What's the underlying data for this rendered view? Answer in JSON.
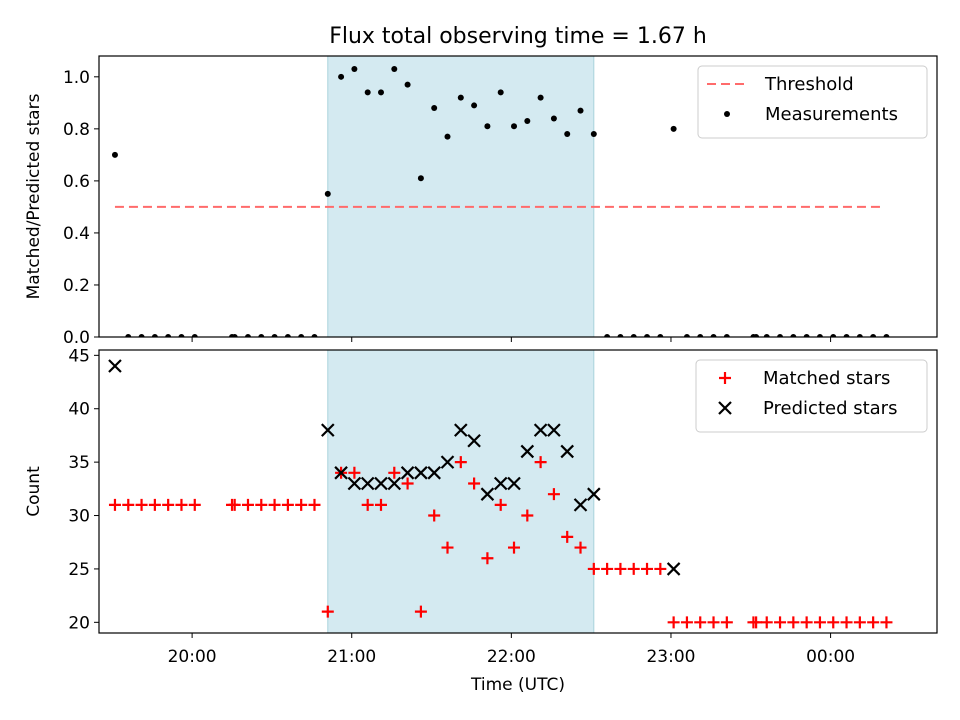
{
  "title": "Flux total observing time = 1.67 h",
  "chart_data": [
    {
      "type": "scatter",
      "ylabel": "Matched/Predicted stars",
      "ylim": [
        0,
        1.08
      ],
      "yticks": [
        "0.0",
        "0.2",
        "0.4",
        "0.6",
        "0.8",
        "1.0"
      ],
      "ytick_values": [
        0,
        0.2,
        0.4,
        0.6,
        0.8,
        1.0
      ],
      "legend_position": "top-right",
      "shaded_interval": [
        "20:51",
        "22:31"
      ],
      "threshold": {
        "name": "Threshold",
        "value": 0.5,
        "x_start": "19:31",
        "x_end": "00:20",
        "color": "#ff6b6b"
      },
      "series": [
        {
          "name": "Measurements",
          "color": "#000000",
          "x": [
            "19:31",
            "19:36",
            "19:41",
            "19:46",
            "19:51",
            "19:56",
            "20:01",
            "20:15",
            "20:16",
            "20:21",
            "20:26",
            "20:31",
            "20:36",
            "20:41",
            "20:46",
            "20:51",
            "20:56",
            "21:01",
            "21:06",
            "21:11",
            "21:16",
            "21:21",
            "21:26",
            "21:31",
            "21:36",
            "21:41",
            "21:46",
            "21:51",
            "21:56",
            "22:01",
            "22:06",
            "22:11",
            "22:16",
            "22:21",
            "22:26",
            "22:31",
            "22:36",
            "22:41",
            "22:46",
            "22:51",
            "22:56",
            "23:01",
            "23:06",
            "23:11",
            "23:16",
            "23:21",
            "23:31",
            "23:32",
            "23:36",
            "23:41",
            "23:46",
            "23:51",
            "23:56",
            "00:01",
            "00:06",
            "00:11",
            "00:16",
            "00:21"
          ],
          "y": [
            0.7,
            0,
            0,
            0,
            0,
            0,
            0,
            0,
            0,
            0,
            0,
            0,
            0,
            0,
            0,
            0.55,
            1.0,
            1.03,
            0.94,
            0.94,
            1.03,
            0.97,
            0.61,
            0.88,
            0.77,
            0.92,
            0.89,
            0.81,
            0.94,
            0.81,
            0.83,
            0.92,
            0.84,
            0.78,
            0.87,
            0.78,
            0,
            0,
            0,
            0,
            0,
            0.8,
            0,
            0,
            0,
            0,
            0,
            0,
            0,
            0,
            0,
            0,
            0,
            0,
            0,
            0,
            0,
            0
          ]
        }
      ]
    },
    {
      "type": "scatter",
      "ylabel": "Count",
      "xlabel": "Time (UTC)",
      "ylim": [
        19,
        45.5
      ],
      "yticks": [
        "20",
        "25",
        "30",
        "35",
        "40",
        "45"
      ],
      "ytick_values": [
        20,
        25,
        30,
        35,
        40,
        45
      ],
      "xticks": [
        "20:00",
        "21:00",
        "22:00",
        "23:00",
        "00:00"
      ],
      "xtick_values": [
        "20:00",
        "21:00",
        "22:00",
        "23:00",
        "00:00"
      ],
      "legend_position": "top-right",
      "shaded_interval": [
        "20:51",
        "22:31"
      ],
      "series": [
        {
          "name": "Matched stars",
          "color": "#ff0000",
          "marker": "plus",
          "x": [
            "19:31",
            "19:36",
            "19:41",
            "19:46",
            "19:51",
            "19:56",
            "20:01",
            "20:15",
            "20:16",
            "20:21",
            "20:26",
            "20:31",
            "20:36",
            "20:41",
            "20:46",
            "20:51",
            "20:56",
            "21:01",
            "21:06",
            "21:11",
            "21:16",
            "21:21",
            "21:26",
            "21:31",
            "21:36",
            "21:41",
            "21:46",
            "21:51",
            "21:56",
            "22:01",
            "22:06",
            "22:11",
            "22:16",
            "22:21",
            "22:26",
            "22:31",
            "22:36",
            "22:41",
            "22:46",
            "22:51",
            "22:56",
            "23:01",
            "23:06",
            "23:11",
            "23:16",
            "23:21",
            "23:31",
            "23:32",
            "23:36",
            "23:41",
            "23:46",
            "23:51",
            "23:56",
            "00:01",
            "00:06",
            "00:11",
            "00:16",
            "00:21"
          ],
          "y": [
            31,
            31,
            31,
            31,
            31,
            31,
            31,
            31,
            31,
            31,
            31,
            31,
            31,
            31,
            31,
            21,
            34,
            34,
            31,
            31,
            34,
            33,
            21,
            30,
            27,
            35,
            33,
            26,
            31,
            27,
            30,
            35,
            32,
            28,
            27,
            25,
            25,
            25,
            25,
            25,
            25,
            20,
            20,
            20,
            20,
            20,
            20,
            20,
            20,
            20,
            20,
            20,
            20,
            20,
            20,
            20,
            20,
            20
          ]
        },
        {
          "name": "Predicted stars",
          "color": "#000000",
          "marker": "x",
          "x": [
            "19:31",
            "20:51",
            "20:56",
            "21:01",
            "21:06",
            "21:11",
            "21:16",
            "21:21",
            "21:26",
            "21:31",
            "21:36",
            "21:41",
            "21:46",
            "21:51",
            "21:56",
            "22:01",
            "22:06",
            "22:11",
            "22:16",
            "22:21",
            "22:26",
            "22:31",
            "23:01"
          ],
          "y": [
            44,
            38,
            34,
            33,
            33,
            33,
            33,
            34,
            34,
            34,
            35,
            38,
            37,
            32,
            33,
            33,
            36,
            38,
            38,
            36,
            31,
            32,
            25
          ]
        }
      ]
    }
  ]
}
